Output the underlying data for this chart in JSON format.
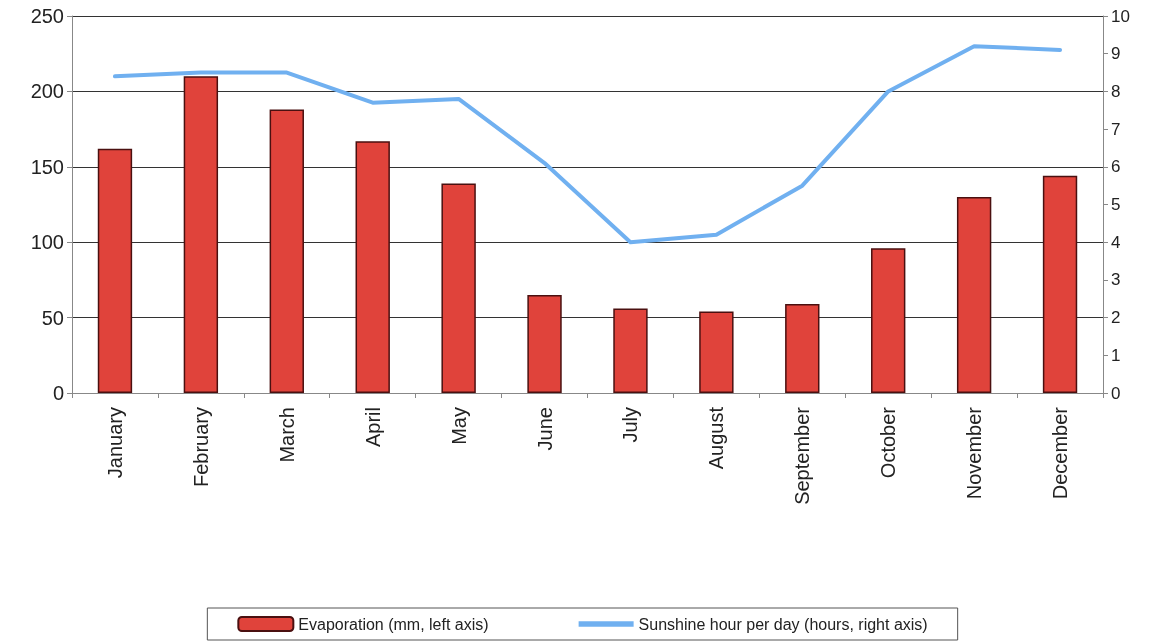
{
  "chart_data": {
    "type": "bar",
    "categories": [
      "January",
      "February",
      "March",
      "April",
      "May",
      "June",
      "July",
      "August",
      "September",
      "October",
      "November",
      "December"
    ],
    "series": [
      {
        "name": "Evaporation (mm, left axis)",
        "color": "#e0433b",
        "values": [
          162,
          210,
          188,
          167,
          139,
          65,
          56,
          54,
          59,
          96,
          130,
          144
        ]
      },
      {
        "name": "Sunshine hour per day (hours, right axis)",
        "type": "line",
        "axis": "y2",
        "color": "#70b0f0",
        "values": [
          8.4,
          8.5,
          8.5,
          7.7,
          7.8,
          6.1,
          4.0,
          4.2,
          5.5,
          8.0,
          9.2,
          9.1
        ]
      }
    ],
    "ylim": [
      0,
      250
    ],
    "yticks": [
      0,
      50,
      100,
      150,
      200,
      250
    ],
    "y2lim": [
      0,
      10
    ],
    "y2ticks": [
      0,
      1,
      2,
      3,
      4,
      5,
      6,
      7,
      8,
      9,
      10
    ],
    "grid": "y",
    "legend": "bottom",
    "marker": "none",
    "line_style": "solid"
  }
}
